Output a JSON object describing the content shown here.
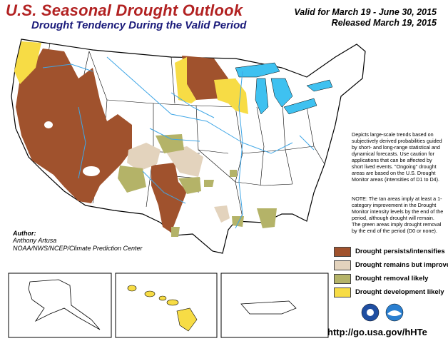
{
  "header": {
    "title": "U.S. Seasonal Drought Outlook",
    "subtitle": "Drought Tendency During the Valid Period",
    "valid": "Valid for March 19 - June 30, 2015",
    "released": "Released March 19, 2015"
  },
  "description": "Depicts large-scale trends based on subjectively derived probabilities guided by short- and long-range statistical and dynamical forecasts. Use caution for applications that can be affected by short lived events. \"Ongoing\" drought areas are based on the U.S. Drought Monitor areas (intensities of D1 to D4).",
  "note": "NOTE: The tan areas imply at least a 1-category improvement in the Drought Monitor intensity levels by the end of the period, although drought will remain. The green areas imply drought removal by the end of the period (D0 or none).",
  "author": {
    "label": "Author:",
    "name": "Anthony Artusa",
    "org": "NOAA/NWS/NCEP/Climate Prediction Center"
  },
  "legend": [
    {
      "label": "Drought persists/intensifies",
      "color": "#a0522d"
    },
    {
      "label": "Drought remains but improves",
      "color": "#e3d3bd"
    },
    {
      "label": "Drought removal likely",
      "color": "#b4b368"
    },
    {
      "label": "Drought development likely",
      "color": "#f7dc45"
    }
  ],
  "url": "http://go.usa.gov/hHTe",
  "colors": {
    "persist": "#a0522d",
    "improve": "#e3d3bd",
    "removal": "#b4b368",
    "development": "#f7dc45",
    "water": "#3fc1f0",
    "rivers": "#3fa6e6",
    "title": "#b22222",
    "subtitle": "#1a1a7a"
  },
  "logos": [
    "noaa-logo",
    "nws-logo"
  ]
}
